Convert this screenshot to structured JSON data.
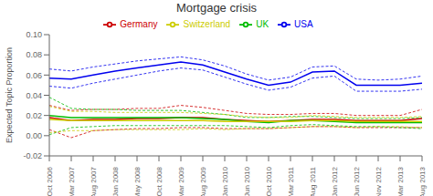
{
  "chart_data": {
    "type": "line",
    "title": "Mortgage crisis",
    "y_label": "Expected Topic Proportion",
    "categories": [
      "Oct 2006",
      "Mar 2007",
      "Aug 2007",
      "Jan 2008",
      "May 2008",
      "Oct 2008",
      "Mar 2009",
      "Aug 2009",
      "Jan 2010",
      "Jun 2010",
      "Oct 2010",
      "Mar 2011",
      "Aug 2011",
      "Jan 2012",
      "Jun 2012",
      "Nov 2012",
      "Mar 2013",
      "Aug 2013"
    ],
    "series": [
      {
        "name": "USA",
        "color": "#0000EE",
        "values": [
          0.057,
          0.056,
          0.06,
          0.064,
          0.067,
          0.07,
          0.073,
          0.07,
          0.063,
          0.056,
          0.05,
          0.053,
          0.063,
          0.064,
          0.05,
          0.05,
          0.05,
          0.052
        ],
        "upper": [
          0.066,
          0.064,
          0.068,
          0.071,
          0.074,
          0.076,
          0.078,
          0.075,
          0.069,
          0.061,
          0.055,
          0.058,
          0.068,
          0.069,
          0.056,
          0.055,
          0.056,
          0.059
        ],
        "lower": [
          0.049,
          0.047,
          0.052,
          0.056,
          0.06,
          0.064,
          0.067,
          0.065,
          0.058,
          0.051,
          0.045,
          0.048,
          0.057,
          0.059,
          0.044,
          0.044,
          0.044,
          0.046
        ]
      },
      {
        "name": "Germany",
        "color": "#CC0000",
        "values": [
          0.018,
          0.015,
          0.016,
          0.016,
          0.017,
          0.017,
          0.018,
          0.018,
          0.016,
          0.015,
          0.014,
          0.015,
          0.016,
          0.016,
          0.015,
          0.015,
          0.015,
          0.017
        ],
        "upper": [
          0.03,
          0.025,
          0.026,
          0.026,
          0.027,
          0.027,
          0.03,
          0.028,
          0.025,
          0.022,
          0.021,
          0.021,
          0.022,
          0.022,
          0.02,
          0.02,
          0.02,
          0.026
        ],
        "lower": [
          0.006,
          -0.002,
          0.005,
          0.006,
          0.007,
          0.007,
          0.008,
          0.008,
          0.007,
          0.007,
          0.007,
          0.008,
          0.009,
          0.009,
          0.008,
          0.008,
          0.008,
          0.008
        ]
      },
      {
        "name": "UK",
        "color": "#00BB00",
        "values": [
          0.02,
          0.018,
          0.018,
          0.018,
          0.018,
          0.018,
          0.018,
          0.017,
          0.016,
          0.014,
          0.013,
          0.015,
          0.015,
          0.014,
          0.013,
          0.013,
          0.013,
          0.013
        ],
        "upper": [
          0.038,
          0.027,
          0.026,
          0.026,
          0.025,
          0.025,
          0.025,
          0.023,
          0.021,
          0.018,
          0.018,
          0.019,
          0.019,
          0.018,
          0.017,
          0.017,
          0.017,
          0.018
        ],
        "lower": [
          0.001,
          0.008,
          0.009,
          0.01,
          0.01,
          0.01,
          0.01,
          0.01,
          0.01,
          0.009,
          0.008,
          0.01,
          0.011,
          0.01,
          0.009,
          0.009,
          0.008,
          0.007
        ]
      },
      {
        "name": "Switzerland",
        "color": "#CCCC00",
        "values": [
          0.016,
          0.015,
          0.015,
          0.015,
          0.015,
          0.015,
          0.015,
          0.015,
          0.014,
          0.014,
          0.014,
          0.014,
          0.015,
          0.015,
          0.014,
          0.014,
          0.014,
          0.014
        ],
        "upper": [
          0.029,
          0.024,
          0.024,
          0.023,
          0.023,
          0.023,
          0.023,
          0.022,
          0.021,
          0.019,
          0.018,
          0.018,
          0.02,
          0.019,
          0.018,
          0.018,
          0.018,
          0.019
        ],
        "lower": [
          0.003,
          0.005,
          0.005,
          0.006,
          0.006,
          0.006,
          0.006,
          0.007,
          0.006,
          0.007,
          0.007,
          0.008,
          0.009,
          0.009,
          0.008,
          0.009,
          0.009,
          0.008
        ]
      }
    ],
    "ylim": [
      -0.02,
      0.1
    ],
    "yticks": [
      -0.02,
      {
        "value": 0,
        "label": "0.00"
      },
      0.02,
      0.04,
      0.06,
      0.08,
      {
        "value": 0.1,
        "label": "0.10"
      }
    ],
    "grid": false,
    "legend": "top"
  }
}
